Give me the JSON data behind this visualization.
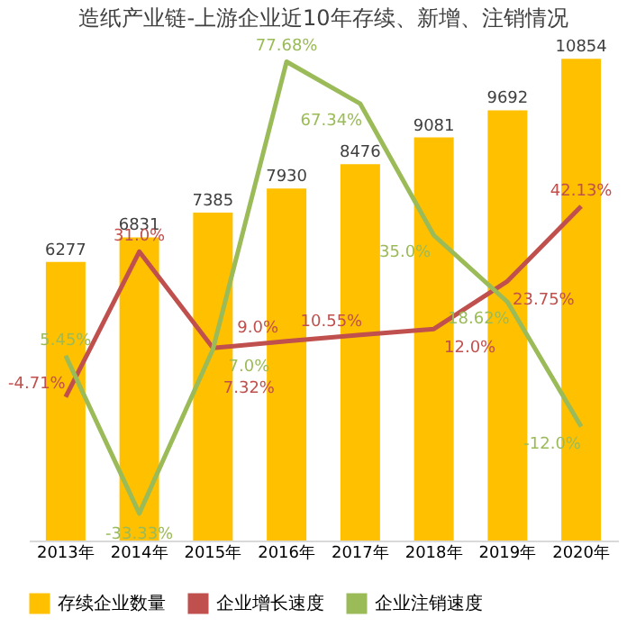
{
  "chart_data": {
    "type": "bar",
    "title": "造纸产业链-上游企业近10年存续、新增、注销情况",
    "categories": [
      "2013年",
      "2014年",
      "2015年",
      "2016年",
      "2017年",
      "2018年",
      "2019年",
      "2020年"
    ],
    "series": [
      {
        "name": "存续企业数量",
        "color": "#ffc000",
        "values": [
          6277,
          6831,
          7385,
          7930,
          8476,
          9081,
          9692,
          10854
        ],
        "data_labels": true
      },
      {
        "name": "企业增长速度",
        "type": "line",
        "axis": "y2",
        "color": "#c0504d",
        "values": [
          -4.71,
          31.0,
          7.32,
          9.0,
          10.55,
          12.0,
          23.75,
          42.13
        ],
        "value_labels": [
          "-4.71%",
          "31.0%",
          "7.32%",
          "9.0%",
          "10.55%",
          "12.0%",
          "23.75%",
          "42.13%"
        ]
      },
      {
        "name": "企业注销速度",
        "type": "line",
        "axis": "y2",
        "color": "#9bbb59",
        "values": [
          5.45,
          -33.33,
          7.0,
          77.68,
          67.34,
          35.0,
          18.62,
          -12.0
        ],
        "value_labels": [
          "5.45%",
          "-33.33%",
          "7.0%",
          "77.68%",
          "67.34%",
          "35.0%",
          "18.62%",
          "-12.0%"
        ]
      }
    ],
    "legend": "bottom",
    "grid": false,
    "line_style": "solid",
    "marker": "none"
  }
}
